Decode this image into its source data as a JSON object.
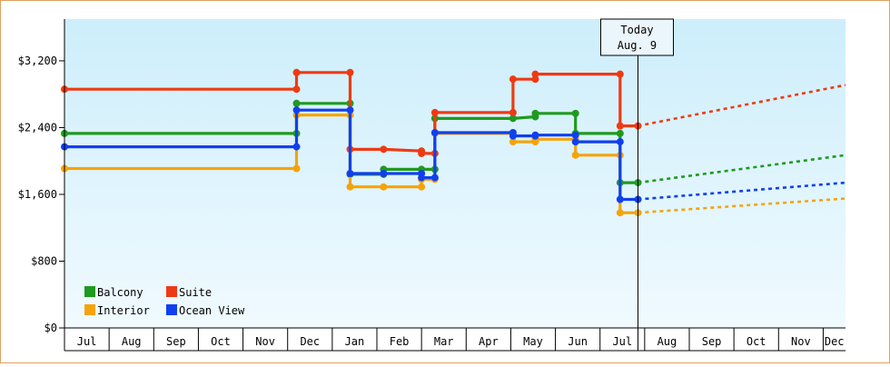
{
  "chart_data": {
    "type": "line",
    "title": "",
    "xlabel": "",
    "ylabel": "",
    "y_ticks": [
      "$0",
      "$800",
      "$1,600",
      "$2,400",
      "$3,200"
    ],
    "y_tick_values": [
      0,
      800,
      1600,
      2400,
      3200
    ],
    "ylim": [
      0,
      3700
    ],
    "x_months": [
      "Jul",
      "Aug",
      "Sep",
      "Oct",
      "Nov",
      "Dec",
      "Jan",
      "Feb",
      "Mar",
      "Apr",
      "May",
      "Jun",
      "Jul",
      "Aug",
      "Sep",
      "Oct",
      "Nov",
      "Dec"
    ],
    "x_range_months": [
      0,
      17.5
    ],
    "grid": false,
    "legend_placement": "bottom-left",
    "background": {
      "top": "#cdeefb",
      "bottom": "#f0faff"
    },
    "today": {
      "line1": "Today",
      "line2": "Aug. 9",
      "x": 12.85
    },
    "series": [
      {
        "name": "Balcony",
        "color": "#1f9a1f",
        "points": [
          [
            0,
            2330
          ],
          [
            5.2,
            2330
          ],
          [
            5.2,
            2690
          ],
          [
            6.4,
            2690
          ],
          [
            6.4,
            1840
          ],
          [
            7.15,
            1840
          ],
          [
            7.15,
            1900
          ],
          [
            8.0,
            1900
          ],
          [
            8.3,
            1900
          ],
          [
            8.3,
            2510
          ],
          [
            10.05,
            2510
          ],
          [
            10.55,
            2530
          ],
          [
            10.55,
            2570
          ],
          [
            11.45,
            2570
          ],
          [
            11.45,
            2330
          ],
          [
            12.45,
            2330
          ],
          [
            12.45,
            1740
          ],
          [
            12.85,
            1740
          ]
        ],
        "markers": [
          [
            0,
            2330
          ],
          [
            5.2,
            2330
          ],
          [
            5.2,
            2690
          ],
          [
            6.4,
            2690
          ],
          [
            6.4,
            1840
          ],
          [
            7.15,
            1840
          ],
          [
            7.15,
            1900
          ],
          [
            8.0,
            1900
          ],
          [
            8.3,
            1900
          ],
          [
            8.3,
            2510
          ],
          [
            10.05,
            2510
          ],
          [
            10.55,
            2530
          ],
          [
            10.55,
            2570
          ],
          [
            11.45,
            2570
          ],
          [
            11.45,
            2330
          ],
          [
            12.45,
            2330
          ],
          [
            12.45,
            1740
          ],
          [
            12.85,
            1740
          ]
        ],
        "forecast": [
          [
            12.85,
            1740
          ],
          [
            17.5,
            2070
          ]
        ]
      },
      {
        "name": "Suite",
        "color": "#ee3a12",
        "points": [
          [
            0,
            2860
          ],
          [
            5.2,
            2860
          ],
          [
            5.2,
            3060
          ],
          [
            6.4,
            3060
          ],
          [
            6.4,
            2140
          ],
          [
            7.15,
            2140
          ],
          [
            8.0,
            2120
          ],
          [
            8.0,
            2090
          ],
          [
            8.3,
            2090
          ],
          [
            8.3,
            2580
          ],
          [
            10.05,
            2580
          ],
          [
            10.05,
            2980
          ],
          [
            10.55,
            2980
          ],
          [
            10.55,
            3040
          ],
          [
            12.45,
            3040
          ],
          [
            12.45,
            2420
          ],
          [
            12.85,
            2420
          ]
        ],
        "markers": [
          [
            0,
            2860
          ],
          [
            5.2,
            2860
          ],
          [
            5.2,
            3060
          ],
          [
            6.4,
            3060
          ],
          [
            6.4,
            2140
          ],
          [
            7.15,
            2140
          ],
          [
            8.0,
            2120
          ],
          [
            8.0,
            2090
          ],
          [
            8.3,
            2090
          ],
          [
            8.3,
            2580
          ],
          [
            10.05,
            2580
          ],
          [
            10.05,
            2980
          ],
          [
            10.55,
            2980
          ],
          [
            10.55,
            3040
          ],
          [
            12.45,
            3040
          ],
          [
            12.45,
            2420
          ],
          [
            12.85,
            2420
          ]
        ],
        "forecast": [
          [
            12.85,
            2420
          ],
          [
            17.5,
            2910
          ]
        ]
      },
      {
        "name": "Interior",
        "color": "#f5a30a",
        "points": [
          [
            0,
            1910
          ],
          [
            5.2,
            1910
          ],
          [
            5.2,
            2550
          ],
          [
            6.4,
            2550
          ],
          [
            6.4,
            1690
          ],
          [
            7.15,
            1690
          ],
          [
            8.0,
            1690
          ],
          [
            8.0,
            1780
          ],
          [
            8.3,
            1780
          ],
          [
            8.3,
            2330
          ],
          [
            10.05,
            2330
          ],
          [
            10.05,
            2230
          ],
          [
            10.55,
            2230
          ],
          [
            10.55,
            2260
          ],
          [
            11.45,
            2260
          ],
          [
            11.45,
            2070
          ],
          [
            12.45,
            2070
          ],
          [
            12.45,
            1380
          ],
          [
            12.85,
            1380
          ]
        ],
        "markers": [
          [
            0,
            1910
          ],
          [
            5.2,
            1910
          ],
          [
            5.2,
            2550
          ],
          [
            6.4,
            2550
          ],
          [
            6.4,
            1690
          ],
          [
            7.15,
            1690
          ],
          [
            8.0,
            1690
          ],
          [
            8.0,
            1780
          ],
          [
            8.3,
            1780
          ],
          [
            8.3,
            2330
          ],
          [
            10.05,
            2330
          ],
          [
            10.05,
            2230
          ],
          [
            10.55,
            2230
          ],
          [
            10.55,
            2260
          ],
          [
            11.45,
            2260
          ],
          [
            11.45,
            2070
          ],
          [
            12.45,
            2070
          ],
          [
            12.45,
            1380
          ],
          [
            12.85,
            1380
          ]
        ],
        "forecast": [
          [
            12.85,
            1380
          ],
          [
            17.5,
            1550
          ]
        ]
      },
      {
        "name": "Ocean View",
        "color": "#1040ee",
        "points": [
          [
            0,
            2170
          ],
          [
            5.2,
            2170
          ],
          [
            5.2,
            2610
          ],
          [
            6.4,
            2610
          ],
          [
            6.4,
            1850
          ],
          [
            7.15,
            1850
          ],
          [
            8.0,
            1850
          ],
          [
            8.0,
            1800
          ],
          [
            8.3,
            1800
          ],
          [
            8.3,
            2340
          ],
          [
            10.05,
            2340
          ],
          [
            10.05,
            2300
          ],
          [
            10.55,
            2300
          ],
          [
            10.55,
            2310
          ],
          [
            11.45,
            2310
          ],
          [
            11.45,
            2230
          ],
          [
            12.45,
            2230
          ],
          [
            12.45,
            1540
          ],
          [
            12.85,
            1540
          ]
        ],
        "markers": [
          [
            0,
            2170
          ],
          [
            5.2,
            2170
          ],
          [
            5.2,
            2610
          ],
          [
            6.4,
            2610
          ],
          [
            6.4,
            1850
          ],
          [
            7.15,
            1850
          ],
          [
            8.0,
            1850
          ],
          [
            8.0,
            1800
          ],
          [
            8.3,
            1800
          ],
          [
            8.3,
            2340
          ],
          [
            10.05,
            2340
          ],
          [
            10.05,
            2300
          ],
          [
            10.55,
            2300
          ],
          [
            10.55,
            2310
          ],
          [
            11.45,
            2310
          ],
          [
            11.45,
            2230
          ],
          [
            12.45,
            2230
          ],
          [
            12.45,
            1540
          ],
          [
            12.85,
            1540
          ]
        ],
        "forecast": [
          [
            12.85,
            1540
          ],
          [
            17.5,
            1740
          ]
        ]
      }
    ]
  }
}
